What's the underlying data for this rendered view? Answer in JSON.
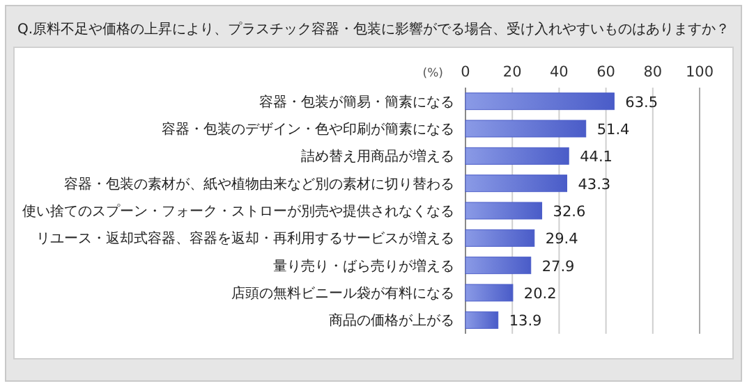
{
  "chart_data": {
    "type": "bar",
    "orientation": "horizontal",
    "title": "Q.原料不足や価格の上昇により、プラスチック容器・包装に影響がでる場合、受け入れやすいものはありますか？",
    "xlabel": "(%)",
    "categories": [
      "容器・包装が簡易・簡素になる",
      "容器・包装のデザイン・色や印刷が簡素になる",
      "詰め替え用商品が増える",
      "容器・包装の素材が、紙や植物由来など別の素材に切り替わる",
      "使い捨てのスプーン・フォーク・ストローが別売や提供されなくなる",
      "リユース・返却式容器、容器を返却・再利用するサービスが増える",
      "量り売り・ばら売りが増える",
      "店頭の無料ビニール袋が有料になる",
      "商品の価格が上がる"
    ],
    "values": [
      63.5,
      51.4,
      44.1,
      43.3,
      32.6,
      29.4,
      27.9,
      20.2,
      13.9
    ],
    "color": "#4a5cc8",
    "xlim": [
      0,
      100
    ],
    "xticks": [
      0,
      20,
      40,
      60,
      80,
      100
    ],
    "grid": "x",
    "data_labels": true
  }
}
